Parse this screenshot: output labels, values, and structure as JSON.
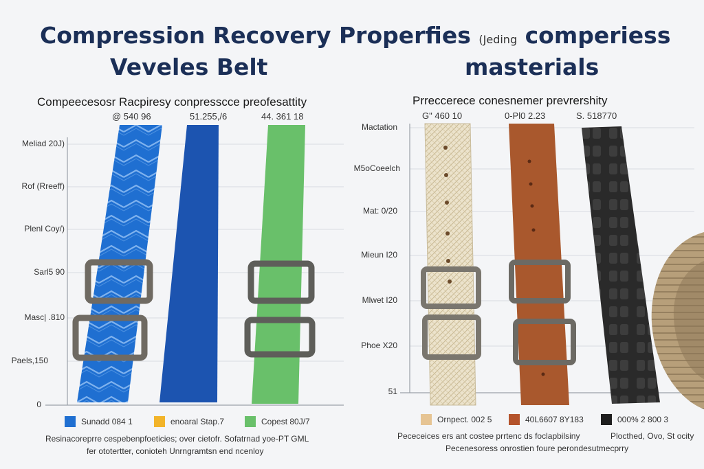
{
  "title": {
    "line1": "Compression Recovery Properfies",
    "line1_small": "(Jeding",
    "line1_end": "comperiess",
    "line2_left": "Veveles Belt",
    "line2_right": "masterials"
  },
  "colors": {
    "title": "#1b2f57",
    "blue_woven": "#1f6fd1",
    "blue_plain": "#1c54b0",
    "green": "#69c06a",
    "canvas": "#ece3cc",
    "leather": "#a9582d",
    "black": "#2a2a2a",
    "buckle": "#6f6a62"
  },
  "chart_data": [
    {
      "type": "bar",
      "title": "Compeecesosr Racpiresy conpresscce preofesattity",
      "header_values": [
        "@  540 96",
        "51.255,/6",
        "44. 361 18"
      ],
      "y_tick_labels": [
        "Meliad 20J)",
        "Rof (Rreeff)",
        "Plenl Coy/)",
        "Sarl5 90",
        "Masc| .810",
        "Paels,150",
        "0"
      ],
      "series": [
        {
          "name": "Sunadd 084 1",
          "color": "#1f6fd1",
          "value": 0.86
        },
        {
          "name": "enoaral Stap.7",
          "color": "#f2b42a",
          "value": 0.86
        },
        {
          "name": "Copest 80J/7",
          "color": "#69c06a",
          "value": 0.86
        }
      ],
      "grid": true,
      "legend_position": "bottom",
      "notes": [
        "Resinacoreprre cespebenpfoeticies; over cietofr.  Sofatrnad yoe-PT GML",
        "fer ototertter, conioteh Unrngramtsn end ncenloy"
      ]
    },
    {
      "type": "bar",
      "title": "Prreccerece conesnemer prevrershity",
      "header_values": [
        "G\" 460 10",
        "0-Pl0 2.23",
        "S. 518770"
      ],
      "y_tick_labels": [
        "Mactation",
        "M5oCoeelch",
        "Mat: 0/20",
        "Mieun I20",
        "Mlwet I20",
        "Phoe X20",
        "51"
      ],
      "series": [
        {
          "name": "Ornpect. 002 5",
          "color": "#e6c493",
          "value": 0.86
        },
        {
          "name": "40L6607 8Y183",
          "color": "#b4532b",
          "value": 0.86
        },
        {
          "name": "000% 2 800 3",
          "color": "#1e1e1e",
          "value": 0.86
        }
      ],
      "grid": true,
      "legend_position": "bottom",
      "notes": [
        "Pececeices ers ant costee prrtenc ds foclapbilsiny",
        "Plocthed, Ovo, St ocity",
        "Pecenesoress onrostien foure perondesutmecprry"
      ]
    }
  ]
}
